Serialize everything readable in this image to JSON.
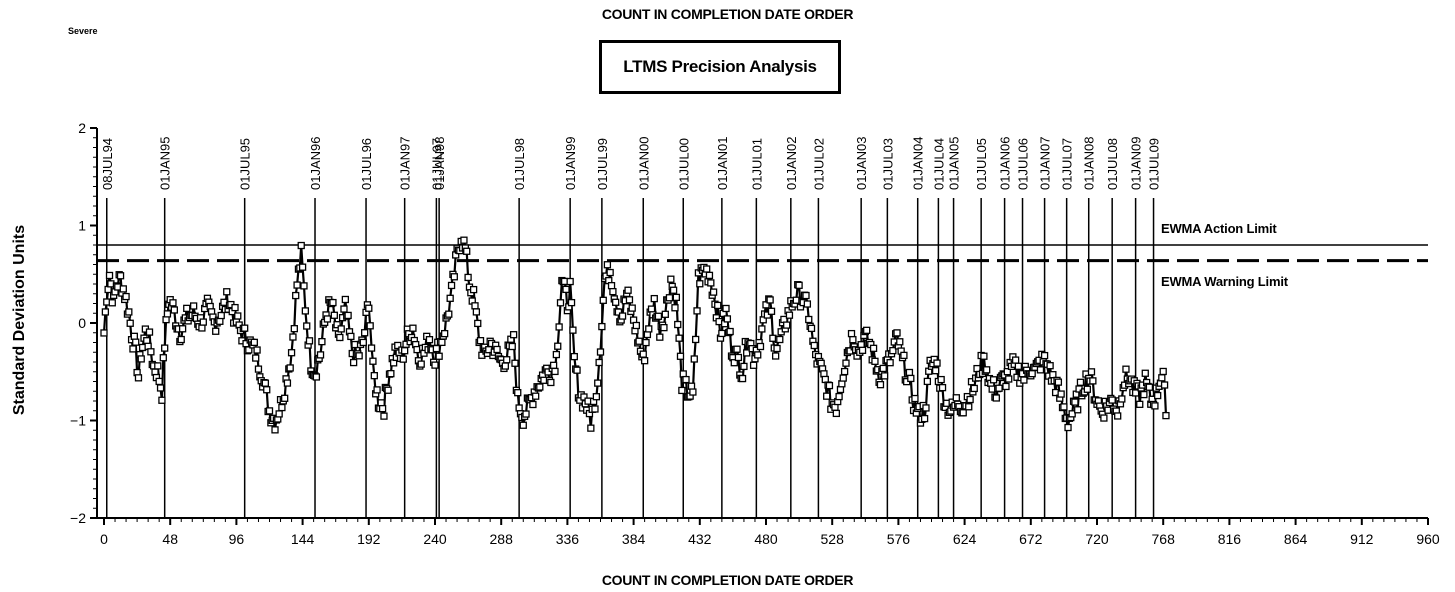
{
  "header": {
    "top_title": "COUNT IN COMPLETION DATE ORDER",
    "corner_label": "Severe",
    "box_title": "LTMS Precision Analysis"
  },
  "chart_data": {
    "type": "line",
    "title": "LTMS Precision Analysis",
    "xlabel": "COUNT IN COMPLETION DATE ORDER",
    "ylabel": "Standard Deviation Units",
    "xlim": [
      0,
      960
    ],
    "ylim": [
      -2,
      2
    ],
    "x_ticks": [
      0,
      48,
      96,
      144,
      192,
      240,
      288,
      336,
      384,
      432,
      480,
      528,
      576,
      624,
      672,
      720,
      768,
      816,
      864,
      912,
      960
    ],
    "y_ticks": [
      -2,
      -1,
      0,
      1,
      2
    ],
    "grid": false,
    "marker": "square",
    "limits": [
      {
        "name": "EWMA Action Limit",
        "value": 0.8,
        "style": "solid"
      },
      {
        "name": "EWMA Warning Limit",
        "value": 0.64,
        "style": "dashed"
      }
    ],
    "date_markers": [
      {
        "label": "08JUL94",
        "x": 2
      },
      {
        "label": "01JAN95",
        "x": 44
      },
      {
        "label": "01JUL95",
        "x": 102
      },
      {
        "label": "01JAN96",
        "x": 153
      },
      {
        "label": "01JUL96",
        "x": 190
      },
      {
        "label": "01JAN97",
        "x": 218
      },
      {
        "label": "01JUL97",
        "x": 241
      },
      {
        "label": "01JAN98",
        "x": 243
      },
      {
        "label": "01JUL98",
        "x": 301
      },
      {
        "label": "01JAN99",
        "x": 338
      },
      {
        "label": "01JUL99",
        "x": 361
      },
      {
        "label": "01JAN00",
        "x": 391
      },
      {
        "label": "01JUL00",
        "x": 420
      },
      {
        "label": "01JAN01",
        "x": 448
      },
      {
        "label": "01JUL01",
        "x": 473
      },
      {
        "label": "01JAN02",
        "x": 498
      },
      {
        "label": "01JUL02",
        "x": 518
      },
      {
        "label": "01JAN03",
        "x": 549
      },
      {
        "label": "01JUL03",
        "x": 568
      },
      {
        "label": "01JAN04",
        "x": 590
      },
      {
        "label": "01JUL04",
        "x": 605
      },
      {
        "label": "01JAN05",
        "x": 616
      },
      {
        "label": "01JUL05",
        "x": 636
      },
      {
        "label": "01JAN06",
        "x": 653
      },
      {
        "label": "01JUL06",
        "x": 666
      },
      {
        "label": "01JAN07",
        "x": 682
      },
      {
        "label": "01JUL07",
        "x": 698
      },
      {
        "label": "01JAN08",
        "x": 714
      },
      {
        "label": "01JUL08",
        "x": 731
      },
      {
        "label": "01JAN09",
        "x": 748
      },
      {
        "label": "01JUL09",
        "x": 761
      }
    ],
    "series": [
      {
        "values_anchors": [
          [
            0,
            -0.1
          ],
          [
            2,
            0.3
          ],
          [
            4,
            0.5
          ],
          [
            7,
            0.2
          ],
          [
            9,
            0.4
          ],
          [
            12,
            0.45
          ],
          [
            15,
            0.3
          ],
          [
            18,
            0.1
          ],
          [
            20,
            -0.1
          ],
          [
            23,
            -0.3
          ],
          [
            25,
            -0.55
          ],
          [
            27,
            -0.3
          ],
          [
            30,
            -0.1
          ],
          [
            33,
            -0.2
          ],
          [
            36,
            -0.45
          ],
          [
            39,
            -0.5
          ],
          [
            42,
            -0.7
          ],
          [
            44,
            -0.2
          ],
          [
            47,
            0.25
          ],
          [
            50,
            0.15
          ],
          [
            55,
            -0.1
          ],
          [
            60,
            0.05
          ],
          [
            65,
            0.1
          ],
          [
            70,
            0.0
          ],
          [
            75,
            0.15
          ],
          [
            80,
            0.0
          ],
          [
            85,
            0.1
          ],
          [
            90,
            0.25
          ],
          [
            95,
            0.05
          ],
          [
            100,
            -0.1
          ],
          [
            105,
            -0.2
          ],
          [
            110,
            -0.3
          ],
          [
            115,
            -0.55
          ],
          [
            120,
            -0.9
          ],
          [
            124,
            -1.0
          ],
          [
            128,
            -0.85
          ],
          [
            132,
            -0.6
          ],
          [
            136,
            -0.3
          ],
          [
            140,
            0.4
          ],
          [
            143,
            0.7
          ],
          [
            147,
            0.0
          ],
          [
            150,
            -0.4
          ],
          [
            153,
            -0.5
          ],
          [
            157,
            -0.3
          ],
          [
            161,
            0.1
          ],
          [
            165,
            0.2
          ],
          [
            170,
            -0.2
          ],
          [
            175,
            0.15
          ],
          [
            180,
            -0.3
          ],
          [
            184,
            -0.35
          ],
          [
            188,
            -0.2
          ],
          [
            192,
            0.25
          ],
          [
            195,
            -0.5
          ],
          [
            199,
            -0.8
          ],
          [
            203,
            -0.85
          ],
          [
            207,
            -0.5
          ],
          [
            211,
            -0.3
          ],
          [
            216,
            -0.35
          ],
          [
            220,
            -0.15
          ],
          [
            224,
            -0.05
          ],
          [
            228,
            -0.35
          ],
          [
            232,
            -0.3
          ],
          [
            236,
            -0.15
          ],
          [
            240,
            -0.35
          ],
          [
            244,
            -0.2
          ],
          [
            248,
            0.0
          ],
          [
            252,
            0.3
          ],
          [
            256,
            0.7
          ],
          [
            259,
            0.9
          ],
          [
            262,
            0.75
          ],
          [
            265,
            0.4
          ],
          [
            268,
            0.25
          ],
          [
            272,
            -0.15
          ],
          [
            276,
            -0.35
          ],
          [
            280,
            -0.2
          ],
          [
            284,
            -0.3
          ],
          [
            288,
            -0.4
          ],
          [
            292,
            -0.35
          ],
          [
            297,
            -0.2
          ],
          [
            300,
            -0.8
          ],
          [
            304,
            -0.95
          ],
          [
            308,
            -0.85
          ],
          [
            312,
            -0.7
          ],
          [
            316,
            -0.6
          ],
          [
            320,
            -0.5
          ],
          [
            324,
            -0.5
          ],
          [
            328,
            -0.35
          ],
          [
            332,
            0.45
          ],
          [
            336,
            0.2
          ],
          [
            338,
            0.35
          ],
          [
            341,
            -0.4
          ],
          [
            345,
            -0.75
          ],
          [
            349,
            -0.8
          ],
          [
            353,
            -1.0
          ],
          [
            357,
            -0.7
          ],
          [
            360,
            -0.2
          ],
          [
            363,
            0.45
          ],
          [
            367,
            0.55
          ],
          [
            371,
            0.25
          ],
          [
            375,
            0.05
          ],
          [
            379,
            0.3
          ],
          [
            383,
            0.1
          ],
          [
            387,
            -0.15
          ],
          [
            391,
            -0.4
          ],
          [
            395,
            0.0
          ],
          [
            399,
            0.2
          ],
          [
            403,
            -0.05
          ],
          [
            407,
            0.1
          ],
          [
            411,
            0.45
          ],
          [
            415,
            0.2
          ],
          [
            419,
            -0.6
          ],
          [
            423,
            -0.7
          ],
          [
            427,
            -0.75
          ],
          [
            431,
            0.45
          ],
          [
            435,
            0.55
          ],
          [
            439,
            0.5
          ],
          [
            443,
            0.25
          ],
          [
            447,
            -0.1
          ],
          [
            451,
            0.1
          ],
          [
            455,
            -0.25
          ],
          [
            459,
            -0.35
          ],
          [
            463,
            -0.5
          ],
          [
            467,
            -0.1
          ],
          [
            471,
            -0.35
          ],
          [
            475,
            -0.2
          ],
          [
            479,
            0.05
          ],
          [
            483,
            0.2
          ],
          [
            487,
            -0.3
          ],
          [
            491,
            -0.15
          ],
          [
            495,
            0.05
          ],
          [
            499,
            0.2
          ],
          [
            503,
            0.3
          ],
          [
            507,
            0.25
          ],
          [
            511,
            0.1
          ],
          [
            515,
            -0.3
          ],
          [
            519,
            -0.45
          ],
          [
            523,
            -0.6
          ],
          [
            527,
            -0.8
          ],
          [
            531,
            -0.85
          ],
          [
            535,
            -0.55
          ],
          [
            539,
            -0.3
          ],
          [
            543,
            -0.1
          ],
          [
            547,
            -0.3
          ],
          [
            551,
            -0.15
          ],
          [
            555,
            -0.2
          ],
          [
            559,
            -0.4
          ],
          [
            563,
            -0.55
          ],
          [
            567,
            -0.45
          ],
          [
            571,
            -0.35
          ],
          [
            575,
            -0.15
          ],
          [
            579,
            -0.4
          ],
          [
            583,
            -0.55
          ],
          [
            587,
            -0.8
          ],
          [
            591,
            -0.95
          ],
          [
            595,
            -0.9
          ],
          [
            599,
            -0.45
          ],
          [
            603,
            -0.4
          ],
          [
            607,
            -0.65
          ],
          [
            611,
            -0.85
          ],
          [
            615,
            -0.9
          ],
          [
            619,
            -0.8
          ],
          [
            623,
            -0.85
          ],
          [
            627,
            -0.75
          ],
          [
            631,
            -0.65
          ],
          [
            635,
            -0.45
          ],
          [
            639,
            -0.4
          ],
          [
            643,
            -0.65
          ],
          [
            647,
            -0.7
          ],
          [
            651,
            -0.6
          ],
          [
            655,
            -0.55
          ],
          [
            659,
            -0.45
          ],
          [
            663,
            -0.5
          ],
          [
            667,
            -0.55
          ],
          [
            671,
            -0.45
          ],
          [
            675,
            -0.5
          ],
          [
            679,
            -0.4
          ],
          [
            683,
            -0.4
          ],
          [
            687,
            -0.55
          ],
          [
            691,
            -0.65
          ],
          [
            695,
            -0.85
          ],
          [
            699,
            -1.0
          ],
          [
            703,
            -0.9
          ],
          [
            707,
            -0.75
          ],
          [
            711,
            -0.6
          ],
          [
            715,
            -0.55
          ],
          [
            719,
            -0.75
          ],
          [
            723,
            -0.9
          ],
          [
            727,
            -0.85
          ],
          [
            731,
            -0.8
          ],
          [
            735,
            -0.9
          ],
          [
            739,
            -0.6
          ],
          [
            743,
            -0.55
          ],
          [
            747,
            -0.7
          ],
          [
            751,
            -0.75
          ],
          [
            755,
            -0.6
          ],
          [
            759,
            -0.8
          ],
          [
            763,
            -0.75
          ],
          [
            766,
            -0.55
          ],
          [
            768,
            -0.5
          ],
          [
            770,
            -0.95
          ]
        ]
      }
    ]
  },
  "limit_labels": {
    "action": "EWMA Action Limit",
    "warning": "EWMA Warning Limit"
  },
  "axis": {
    "ylabel": "Standard Deviation Units",
    "xlabel": "COUNT IN COMPLETION DATE ORDER"
  }
}
